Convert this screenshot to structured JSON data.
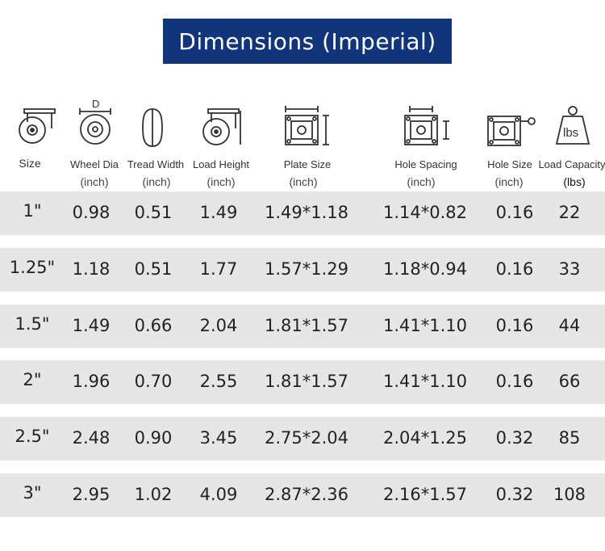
{
  "title": "Dimensions (Imperial)",
  "icons": {
    "size": "caster-size-icon",
    "wheel_dia": "wheel-diameter-icon",
    "tread_width": "tread-width-icon",
    "load_height": "load-height-icon",
    "plate_size": "plate-size-icon",
    "hole_spacing": "hole-spacing-icon",
    "hole_size": "hole-size-icon",
    "load_capacity": "weight-icon"
  },
  "icon_labels": {
    "diameter": "D",
    "weight": "lbs"
  },
  "columns": [
    {
      "key": "size",
      "label": "Size",
      "unit": ""
    },
    {
      "key": "wheel_dia",
      "label": "Wheel Dia",
      "unit": "(inch)"
    },
    {
      "key": "tread_width",
      "label": "Tread Width",
      "unit": "(inch)"
    },
    {
      "key": "load_height",
      "label": "Load Height",
      "unit": "(inch)"
    },
    {
      "key": "plate_size",
      "label": "Plate Size",
      "unit": "(inch)"
    },
    {
      "key": "hole_spacing",
      "label": "Hole Spacing",
      "unit": "(inch)"
    },
    {
      "key": "hole_size",
      "label": "Hole Size",
      "unit": "(inch)"
    },
    {
      "key": "load_capacity",
      "label": "Load Capacity",
      "unit": "(lbs)"
    }
  ],
  "rows": [
    [
      "1\"",
      "0.98",
      "0.51",
      "1.49",
      "1.49*1.18",
      "1.14*0.82",
      "0.16",
      "22"
    ],
    [
      "1.25\"",
      "1.18",
      "0.51",
      "1.77",
      "1.57*1.29",
      "1.18*0.94",
      "0.16",
      "33"
    ],
    [
      "1.5\"",
      "1.49",
      "0.66",
      "2.04",
      "1.81*1.57",
      "1.41*1.10",
      "0.16",
      "44"
    ],
    [
      "2\"",
      "1.96",
      "0.70",
      "2.55",
      "1.81*1.57",
      "1.41*1.10",
      "0.16",
      "66"
    ],
    [
      "2.5\"",
      "2.48",
      "0.90",
      "3.45",
      "2.75*2.04",
      "2.04*1.25",
      "0.32",
      "85"
    ],
    [
      "3\"",
      "2.95",
      "1.02",
      "4.09",
      "2.87*2.36",
      "2.16*1.57",
      "0.32",
      "108"
    ]
  ],
  "colors": {
    "title_bg": "#10357a",
    "row_band": "#e6e6e6"
  }
}
